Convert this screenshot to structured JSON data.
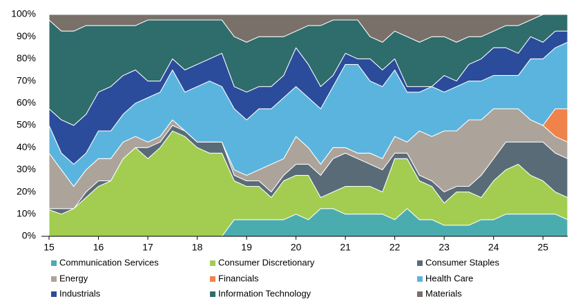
{
  "chart_data": {
    "type": "stacked_area",
    "x": [
      15,
      15.25,
      15.5,
      15.75,
      16,
      16.25,
      16.5,
      16.75,
      17,
      17.25,
      17.5,
      17.75,
      18,
      18.25,
      18.5,
      18.75,
      19,
      19.25,
      19.5,
      19.75,
      20,
      20.25,
      20.5,
      20.75,
      21,
      21.25,
      21.5,
      21.75,
      22,
      22.25,
      22.5,
      22.75,
      23,
      23.25,
      23.5,
      23.75,
      24,
      24.25,
      24.5,
      24.75,
      25,
      25.25,
      25.5
    ],
    "xlim": [
      15,
      25.5
    ],
    "xticks": [
      15,
      16,
      17,
      18,
      19,
      20,
      21,
      22,
      23,
      24,
      25
    ],
    "ylim": [
      0,
      100
    ],
    "yticks": [
      {
        "value": 0,
        "label": "0%"
      },
      {
        "value": 10,
        "label": "10%"
      },
      {
        "value": 20,
        "label": "20%"
      },
      {
        "value": 30,
        "label": "30%"
      },
      {
        "value": 40,
        "label": "40%"
      },
      {
        "value": 50,
        "label": "50%"
      },
      {
        "value": 60,
        "label": "60%"
      },
      {
        "value": 70,
        "label": "70%"
      },
      {
        "value": 80,
        "label": "80%"
      },
      {
        "value": 90,
        "label": "90%"
      },
      {
        "value": 100,
        "label": "100%"
      }
    ],
    "grid": false,
    "legend": "bottom",
    "series": [
      {
        "name": "Communication Services",
        "color": "#4bacb0",
        "values": [
          0,
          0,
          0,
          0,
          0,
          0,
          0,
          0,
          0,
          0,
          0,
          0,
          0,
          0,
          0,
          7.5,
          7.5,
          7.5,
          7.5,
          7.5,
          10,
          7.5,
          12.5,
          12.5,
          10,
          10,
          10,
          10,
          7.5,
          12.5,
          7.5,
          7.5,
          5,
          5,
          5,
          7.5,
          7.5,
          10,
          10,
          10,
          10,
          10,
          7.5
        ]
      },
      {
        "name": "Consumer Discretionary",
        "color": "#a2cd50",
        "values": [
          12,
          10,
          12.5,
          17.5,
          22.5,
          25,
          35,
          40,
          35,
          40,
          47.5,
          45,
          40,
          37.5,
          37.5,
          17.5,
          15,
          15,
          10,
          17.5,
          17.5,
          20,
          5,
          7.5,
          12.5,
          12.5,
          12.5,
          10,
          27.5,
          22.5,
          17.5,
          15,
          10,
          15,
          15,
          10,
          17.5,
          20,
          22.5,
          17.5,
          15,
          10,
          10
        ]
      },
      {
        "name": "Consumer Staples",
        "color": "#5a6b78",
        "values": [
          0.5,
          2.5,
          0,
          2.5,
          2.5,
          0,
          0,
          0,
          5,
          2.5,
          2.5,
          2.5,
          2.5,
          5,
          5,
          2.5,
          2.5,
          2.5,
          2.5,
          2.5,
          5,
          5,
          10,
          15,
          15,
          12.5,
          10,
          10,
          2.5,
          2.5,
          2.5,
          2.5,
          5,
          2.5,
          2.5,
          10,
          10,
          12.5,
          10,
          15,
          17.5,
          17.5,
          17.5
        ]
      },
      {
        "name": "Energy",
        "color": "#aca39b",
        "values": [
          25,
          17.5,
          10,
          10,
          10,
          10,
          7.5,
          5,
          2.5,
          2.5,
          2.5,
          0,
          0,
          0,
          0,
          2.5,
          2.5,
          5,
          12.5,
          7.5,
          12.5,
          7.5,
          5,
          5,
          2.5,
          2.5,
          5,
          5,
          7.5,
          5,
          20,
          20,
          27.5,
          25,
          30,
          25,
          22.5,
          15,
          15,
          10,
          7.5,
          7.5,
          7.5
        ]
      },
      {
        "name": "Financials",
        "color": "#f0834a",
        "values": [
          0,
          0,
          0,
          0,
          0,
          0,
          0,
          0,
          0,
          0,
          0,
          0,
          0,
          0,
          0,
          0,
          0,
          0,
          0,
          0,
          0,
          0,
          0,
          0,
          0,
          0,
          0,
          0,
          0,
          0,
          0,
          0,
          0,
          0,
          0,
          0,
          0,
          0,
          0,
          0,
          0,
          12.5,
          15
        ]
      },
      {
        "name": "Health Care",
        "color": "#5bb4dd",
        "values": [
          12.5,
          7.5,
          10,
          7.5,
          12.5,
          12.5,
          12.5,
          15,
          20,
          20,
          22.5,
          17.5,
          25,
          27.5,
          25,
          27.5,
          25,
          27.5,
          25,
          27.5,
          22.5,
          22.5,
          25,
          27.5,
          37.5,
          40,
          32.5,
          32.5,
          30,
          22.5,
          17.5,
          22.5,
          17.5,
          20,
          17.5,
          17.5,
          15,
          15,
          15,
          27.5,
          30,
          27.5,
          30
        ]
      },
      {
        "name": "Industrials",
        "color": "#2b4c9b",
        "values": [
          7.5,
          15,
          17.5,
          17.5,
          17.5,
          20,
          17.5,
          15,
          7.5,
          5,
          5,
          10,
          10,
          10,
          15,
          10,
          12.5,
          10,
          10,
          10,
          17.5,
          15,
          10,
          5,
          5,
          2.5,
          10,
          7.5,
          5,
          2.5,
          2.5,
          0,
          7.5,
          2.5,
          7.5,
          10,
          12.5,
          12.5,
          10,
          10,
          7.5,
          7.5,
          5
        ]
      },
      {
        "name": "Information Technology",
        "color": "#2f6c6c",
        "values": [
          40,
          40,
          42.5,
          40,
          30,
          27.5,
          22.5,
          20,
          27.5,
          27.5,
          17.5,
          22.5,
          20,
          17.5,
          15,
          22.5,
          22.5,
          22.5,
          22.5,
          17.5,
          7.5,
          17.5,
          27.5,
          25,
          15,
          17.5,
          10,
          12.5,
          12.5,
          22.5,
          20,
          22.5,
          17.5,
          17.5,
          12.5,
          10,
          7.5,
          10,
          12.5,
          7.5,
          12.5,
          7.5,
          7.5
        ]
      },
      {
        "name": "Materials",
        "color": "#7a706a",
        "values": [
          2.5,
          7.5,
          7.5,
          5,
          5,
          5,
          5,
          5,
          2.5,
          2.5,
          2.5,
          2.5,
          2.5,
          2.5,
          2.5,
          10,
          12.5,
          10,
          10,
          10,
          7.5,
          5,
          5,
          2.5,
          2.5,
          2.5,
          10,
          12.5,
          7.5,
          10,
          12.5,
          10,
          10,
          12.5,
          10,
          10,
          7.5,
          5,
          5,
          2.5,
          0,
          0,
          0
        ]
      }
    ]
  }
}
